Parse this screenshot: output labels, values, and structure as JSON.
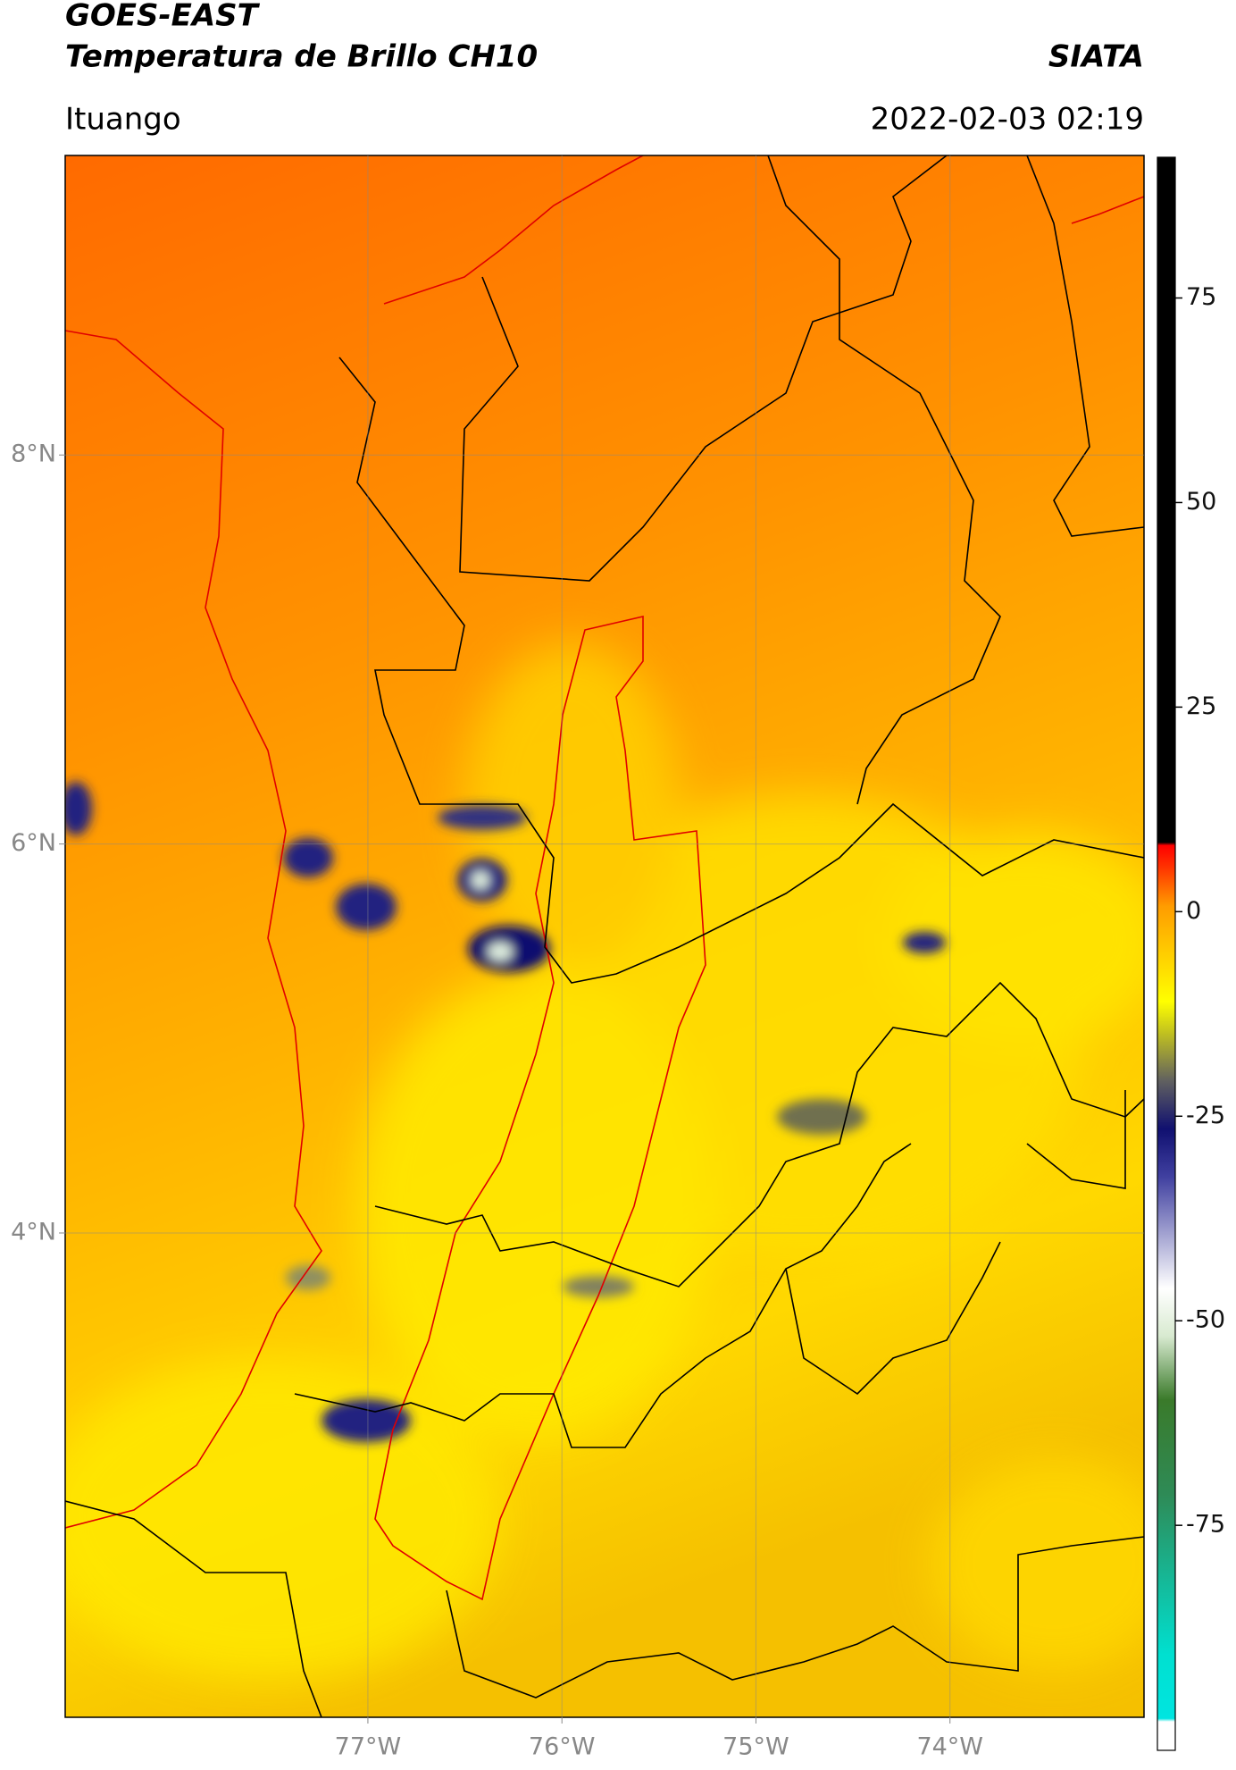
{
  "header": {
    "title": "GOES-EAST",
    "subtitle": "Temperatura de Brillo CH10",
    "source": "SIATA",
    "location": "Ituango",
    "datetime": "2022-02-03 02:19"
  },
  "map": {
    "lon_range": [
      -78.56,
      -73.0
    ],
    "lat_range": [
      1.51,
      9.54
    ],
    "lon_ticks": [
      {
        "value": -77,
        "label": "77°W"
      },
      {
        "value": -76,
        "label": "76°W"
      },
      {
        "value": -75,
        "label": "75°W"
      },
      {
        "value": -74,
        "label": "74°W"
      }
    ],
    "lat_ticks": [
      {
        "value": 8,
        "label": "8°N"
      },
      {
        "value": 6,
        "label": "6°N"
      },
      {
        "value": 4,
        "label": "4°N"
      }
    ],
    "grid": true
  },
  "colorbar": {
    "range": [
      -102.5,
      92.2
    ],
    "ticks": [
      75,
      50,
      25,
      0,
      -25,
      -50,
      -75
    ]
  }
}
